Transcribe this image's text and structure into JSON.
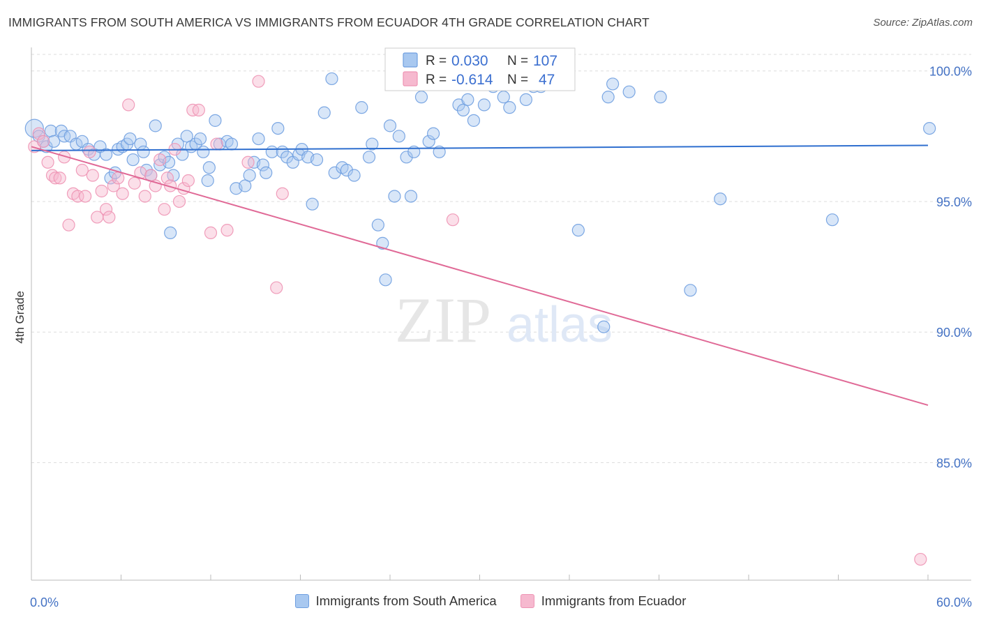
{
  "header": {
    "title": "IMMIGRANTS FROM SOUTH AMERICA VS IMMIGRANTS FROM ECUADOR 4TH GRADE CORRELATION CHART",
    "source": "Source: ZipAtlas.com"
  },
  "legend_box": {
    "r_label": "R =",
    "n_label": "N =",
    "series1_r": "0.030",
    "series1_n": "107",
    "series2_r": "-0.614",
    "series2_n": "47"
  },
  "bottom_legend": {
    "series1": "Immigrants from South America",
    "series2": "Immigrants from Ecuador"
  },
  "watermark": {
    "zip": "ZIP",
    "atlas": "atlas"
  },
  "colors": {
    "series1_fill": "#a8c8f0",
    "series1_stroke": "#6f9fe0",
    "series1_line": "#2f6fcf",
    "series2_fill": "#f6b9cf",
    "series2_stroke": "#ee94b4",
    "series2_line": "#e06996",
    "tick_text": "#4472c4",
    "grid": "#dddddd"
  },
  "chart_data": {
    "type": "scatter",
    "title": "IMMIGRANTS FROM SOUTH AMERICA VS IMMIGRANTS FROM ECUADOR 4TH GRADE CORRELATION CHART",
    "xlabel": "",
    "ylabel": "4th Grade",
    "xlim": [
      0,
      60
    ],
    "ylim": [
      80.5,
      100.9
    ],
    "x_ticks_labeled": [
      "0.0%",
      "60.0%"
    ],
    "y_ticks": [
      {
        "value": 100,
        "label": "100.0%"
      },
      {
        "value": 95,
        "label": "95.0%"
      },
      {
        "value": 90,
        "label": "90.0%"
      },
      {
        "value": 85,
        "label": "85.0%"
      }
    ],
    "grid": "horizontal dashed",
    "legend_position": "top-center",
    "series": [
      {
        "name": "Immigrants from South America",
        "r": 0.03,
        "n": 107,
        "trend": [
          [
            0,
            96.95
          ],
          [
            60,
            97.15
          ]
        ],
        "points": [
          [
            0.2,
            97.8
          ],
          [
            0.5,
            97.5
          ],
          [
            0.8,
            97.3
          ],
          [
            1.0,
            97.1
          ],
          [
            1.3,
            97.7
          ],
          [
            1.5,
            97.3
          ],
          [
            2.0,
            97.7
          ],
          [
            2.2,
            97.5
          ],
          [
            2.6,
            97.5
          ],
          [
            3.0,
            97.2
          ],
          [
            3.4,
            97.3
          ],
          [
            3.8,
            97.0
          ],
          [
            4.2,
            96.8
          ],
          [
            4.6,
            97.1
          ],
          [
            5.0,
            96.8
          ],
          [
            5.3,
            95.9
          ],
          [
            5.6,
            96.1
          ],
          [
            5.8,
            97.0
          ],
          [
            6.1,
            97.1
          ],
          [
            6.4,
            97.2
          ],
          [
            6.6,
            97.4
          ],
          [
            6.8,
            96.6
          ],
          [
            7.3,
            97.2
          ],
          [
            7.5,
            96.9
          ],
          [
            7.7,
            96.2
          ],
          [
            8.0,
            96.0
          ],
          [
            8.3,
            97.9
          ],
          [
            8.6,
            96.4
          ],
          [
            8.9,
            96.7
          ],
          [
            9.2,
            96.5
          ],
          [
            9.3,
            93.8
          ],
          [
            9.5,
            96.0
          ],
          [
            9.8,
            97.2
          ],
          [
            10.1,
            96.8
          ],
          [
            10.4,
            97.5
          ],
          [
            10.7,
            97.1
          ],
          [
            11.0,
            97.2
          ],
          [
            11.3,
            97.4
          ],
          [
            11.5,
            96.9
          ],
          [
            11.8,
            95.8
          ],
          [
            11.9,
            96.3
          ],
          [
            12.3,
            98.1
          ],
          [
            12.6,
            97.2
          ],
          [
            13.1,
            97.3
          ],
          [
            13.4,
            97.2
          ],
          [
            13.7,
            95.5
          ],
          [
            14.3,
            95.6
          ],
          [
            14.6,
            96.0
          ],
          [
            14.9,
            96.5
          ],
          [
            15.2,
            97.4
          ],
          [
            15.5,
            96.4
          ],
          [
            15.7,
            96.1
          ],
          [
            16.1,
            96.9
          ],
          [
            16.5,
            97.8
          ],
          [
            16.8,
            96.9
          ],
          [
            17.1,
            96.7
          ],
          [
            17.5,
            96.5
          ],
          [
            17.9,
            96.8
          ],
          [
            18.1,
            97.0
          ],
          [
            18.5,
            96.7
          ],
          [
            18.8,
            94.9
          ],
          [
            19.1,
            96.6
          ],
          [
            19.6,
            98.4
          ],
          [
            20.1,
            99.7
          ],
          [
            20.3,
            96.1
          ],
          [
            20.8,
            96.3
          ],
          [
            21.1,
            96.2
          ],
          [
            21.6,
            96.0
          ],
          [
            22.1,
            98.6
          ],
          [
            22.6,
            96.7
          ],
          [
            22.8,
            97.2
          ],
          [
            23.2,
            94.1
          ],
          [
            23.5,
            93.4
          ],
          [
            23.7,
            92.0
          ],
          [
            24.0,
            97.9
          ],
          [
            24.3,
            95.2
          ],
          [
            24.6,
            97.5
          ],
          [
            25.1,
            96.7
          ],
          [
            25.4,
            95.2
          ],
          [
            25.6,
            96.9
          ],
          [
            26.1,
            99.0
          ],
          [
            26.6,
            97.3
          ],
          [
            26.9,
            97.6
          ],
          [
            27.3,
            96.9
          ],
          [
            28.1,
            100.0
          ],
          [
            28.6,
            98.7
          ],
          [
            28.9,
            98.5
          ],
          [
            29.2,
            98.9
          ],
          [
            29.6,
            98.1
          ],
          [
            30.3,
            98.7
          ],
          [
            30.6,
            100.0
          ],
          [
            30.9,
            99.4
          ],
          [
            31.6,
            99.0
          ],
          [
            32.0,
            98.6
          ],
          [
            33.1,
            98.9
          ],
          [
            33.6,
            99.4
          ],
          [
            34.1,
            99.4
          ],
          [
            36.6,
            93.9
          ],
          [
            38.3,
            90.2
          ],
          [
            38.6,
            99.0
          ],
          [
            38.9,
            99.5
          ],
          [
            40.0,
            99.2
          ],
          [
            42.1,
            99.0
          ],
          [
            44.1,
            91.6
          ],
          [
            46.1,
            95.1
          ],
          [
            53.6,
            94.3
          ],
          [
            60.1,
            97.8
          ]
        ]
      },
      {
        "name": "Immigrants from Ecuador",
        "r": -0.614,
        "n": 47,
        "trend": [
          [
            0,
            97.1
          ],
          [
            60,
            87.2
          ]
        ],
        "points": [
          [
            0.2,
            97.1
          ],
          [
            0.5,
            97.6
          ],
          [
            0.8,
            97.3
          ],
          [
            1.1,
            96.5
          ],
          [
            1.4,
            96.0
          ],
          [
            1.6,
            95.9
          ],
          [
            1.9,
            95.9
          ],
          [
            2.2,
            96.7
          ],
          [
            2.5,
            94.1
          ],
          [
            2.8,
            95.3
          ],
          [
            3.1,
            95.2
          ],
          [
            3.4,
            96.2
          ],
          [
            3.6,
            95.2
          ],
          [
            3.9,
            96.9
          ],
          [
            4.1,
            96.0
          ],
          [
            4.4,
            94.4
          ],
          [
            4.7,
            95.4
          ],
          [
            5.0,
            94.7
          ],
          [
            5.2,
            94.4
          ],
          [
            5.5,
            95.6
          ],
          [
            5.8,
            95.9
          ],
          [
            6.1,
            95.3
          ],
          [
            6.5,
            98.7
          ],
          [
            6.9,
            95.7
          ],
          [
            7.3,
            96.1
          ],
          [
            7.6,
            95.2
          ],
          [
            8.0,
            96.0
          ],
          [
            8.3,
            95.6
          ],
          [
            8.6,
            96.6
          ],
          [
            8.9,
            94.7
          ],
          [
            9.1,
            95.9
          ],
          [
            9.3,
            95.6
          ],
          [
            9.6,
            97.0
          ],
          [
            9.9,
            95.0
          ],
          [
            10.2,
            95.5
          ],
          [
            10.5,
            95.8
          ],
          [
            10.8,
            98.5
          ],
          [
            11.2,
            98.5
          ],
          [
            12.0,
            93.8
          ],
          [
            12.4,
            97.2
          ],
          [
            13.1,
            93.9
          ],
          [
            14.5,
            96.5
          ],
          [
            15.2,
            99.6
          ],
          [
            16.4,
            91.7
          ],
          [
            16.8,
            95.3
          ],
          [
            28.2,
            94.3
          ],
          [
            59.5,
            81.3
          ]
        ]
      }
    ]
  }
}
